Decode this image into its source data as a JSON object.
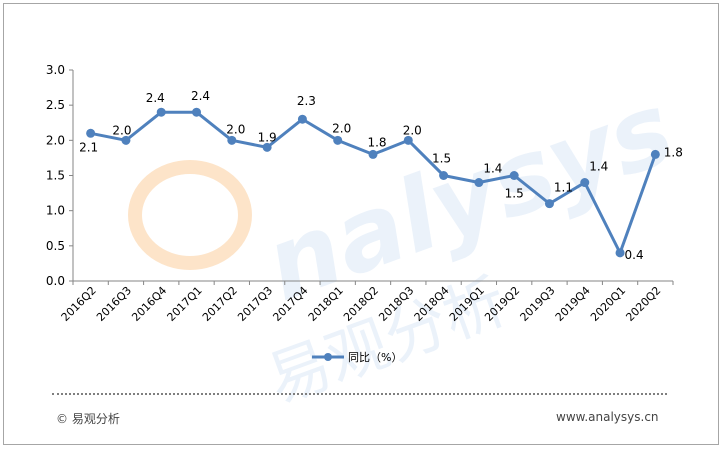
{
  "chart_data": {
    "type": "line",
    "categories": [
      "2016Q2",
      "2016Q3",
      "2016Q4",
      "2017Q1",
      "2017Q2",
      "2017Q3",
      "2017Q4",
      "2018Q1",
      "2018Q2",
      "2018Q3",
      "2018Q4",
      "2019Q1",
      "2019Q2",
      "2019Q3",
      "2019Q4",
      "2020Q1",
      "2020Q2"
    ],
    "series": [
      {
        "name": "同比（%）",
        "values": [
          2.1,
          2.0,
          2.4,
          2.4,
          2.0,
          1.9,
          2.3,
          2.0,
          1.8,
          2.0,
          1.5,
          1.4,
          1.5,
          1.1,
          1.4,
          0.4,
          1.8
        ],
        "color": "#4f81bd"
      }
    ],
    "data_labels": [
      "2.1",
      "2.0",
      "2.4",
      "2.4",
      "2.0",
      "1.9",
      "2.3",
      "2.0",
      "1.8",
      "2.0",
      "1.5",
      "1.4",
      "1.5",
      "1.1",
      "1.4",
      "0.4",
      "1.8"
    ],
    "y_ticks": [
      "0.0",
      "0.5",
      "1.0",
      "1.5",
      "2.0",
      "2.5",
      "3.0"
    ],
    "ylim": [
      0,
      3
    ],
    "grid": false,
    "legend_position": "bottom"
  },
  "footer": {
    "source": "© 易观分析",
    "website": "www.analysys.cn"
  },
  "watermark": {
    "text_latin": "nalysys",
    "text_cn": "易观分析"
  }
}
